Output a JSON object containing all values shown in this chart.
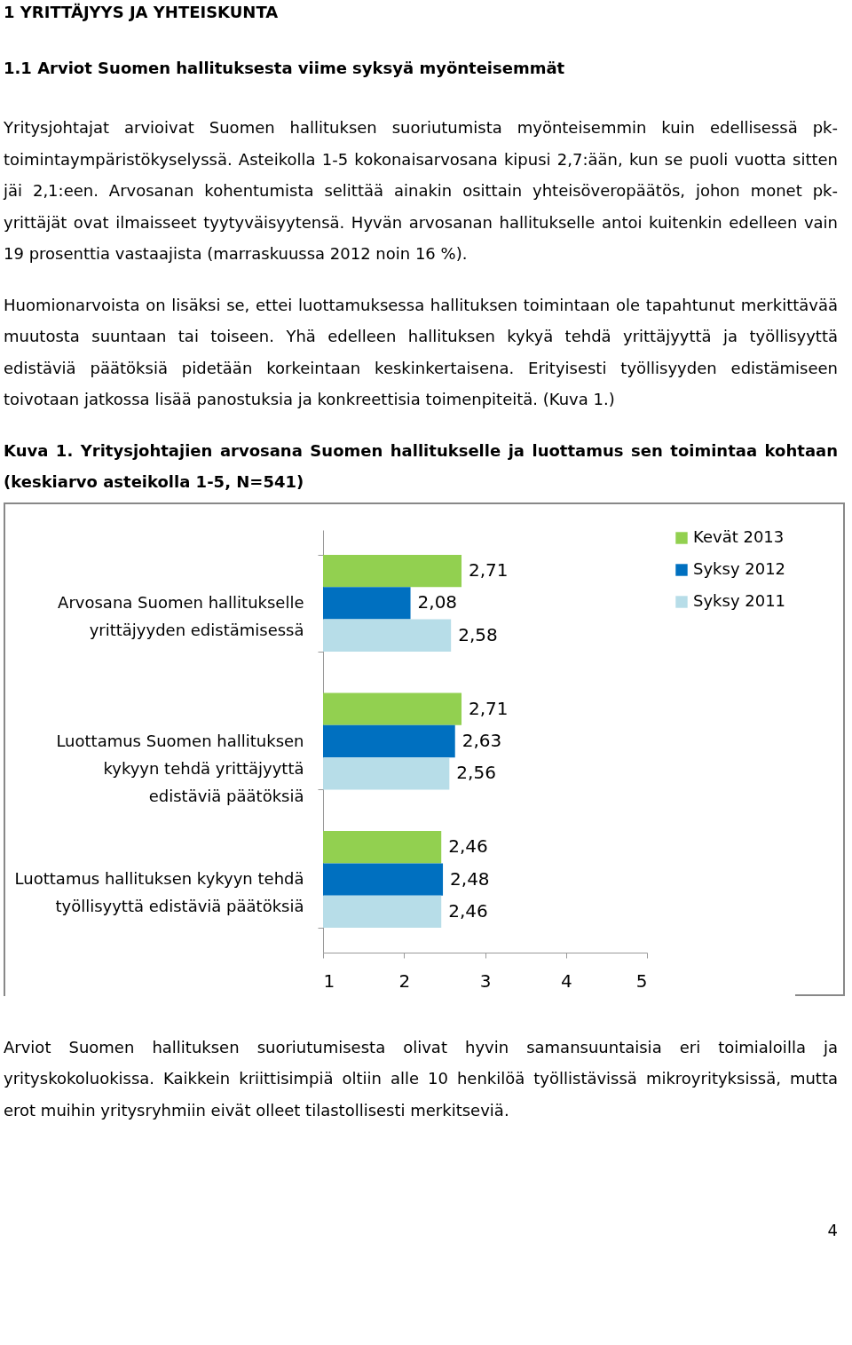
{
  "chart_data": {
    "type": "bar",
    "orientation": "horizontal",
    "title": "Kuva 1. Yritysjohtajien arvosana Suomen hallitukselle ja luottamus sen toimintaa kohtaan (keskiarvo asteikolla 1-5, N=541)",
    "annotations": [
      "1 YRITTÄJYYS JA YHTEISKUNTA",
      "1.1 Arviot Suomen hallituksesta viime syksyä myönteisemmät",
      "Yritysjohtajat arvioivat Suomen hallituksen suoriutumista myönteisemmin kuin edellisessä pk-toimintaympäristökyselyssä. Asteikolla 1-5 kokonaisarvosana kipusi 2,7:ään, kun se puoli vuotta sitten jäi 2,1:een. Arvosanan kohentumista selittää ainakin osittain yhteisöveropäätös, johon monet pk-yrittäjät ovat ilmaisseet tyytyväisyytensä. Hyvän arvosanan hallitukselle antoi kuitenkin edelleen vain 19 prosenttia vastaajista (marraskuussa 2012 noin 16 %).",
      "Huomionarvoista on lisäksi se, ettei luottamuksessa hallituksen toimintaan ole tapahtunut merkittävää muutosta suuntaan tai toiseen. Yhä edelleen hallituksen kykyä tehdä yrittäjyyttä ja työllisyyttä edistäviä päätöksiä pidetään korkeintaan keskinkertaisena. Erityisesti työllisyyden edistämiseen toivotaan jatkossa lisää panostuksia ja konkreettisia toimenpiteitä. (Kuva 1.)",
      "Arviot Suomen hallituksen suoriutumisesta olivat hyvin samansuuntaisia eri toimialoilla ja yrityskokoluokissa. Kaikkein kriittisimpiä oltiin alle 10 henkilöä työllistävissä mikroyrityksissä, mutta erot muihin yritysryhmiin eivät olleet tilastollisesti merkitseviä.",
      "4"
    ],
    "categories": [
      "Arvosana Suomen hallitukselle yrittäjyyden edistämisessä",
      "Luottamus Suomen hallituksen kykyyn tehdä yrittäjyyttä edistäviä päätöksiä",
      "Luottamus hallituksen kykyyn tehdä työllisyyttä edistäviä päätöksiä"
    ],
    "series": [
      {
        "name": "Kevät 2013",
        "color": "#92d050",
        "values": [
          2.71,
          2.71,
          2.46
        ],
        "value_labels": [
          "2,71",
          "2,71",
          "2,46"
        ]
      },
      {
        "name": "Syksy 2012",
        "color": "#0070c0",
        "values": [
          2.08,
          2.63,
          2.48
        ],
        "value_labels": [
          "2,08",
          "2,63",
          "2,48"
        ]
      },
      {
        "name": "Syksy 2011",
        "color": "#b7dde8",
        "values": [
          2.58,
          2.56,
          2.46
        ],
        "value_labels": [
          "2,58",
          "2,56",
          "2,46"
        ]
      }
    ],
    "xlim": [
      1,
      5
    ],
    "xticks": [
      1,
      2,
      3,
      4,
      5
    ],
    "legend": "right",
    "grid": false
  }
}
